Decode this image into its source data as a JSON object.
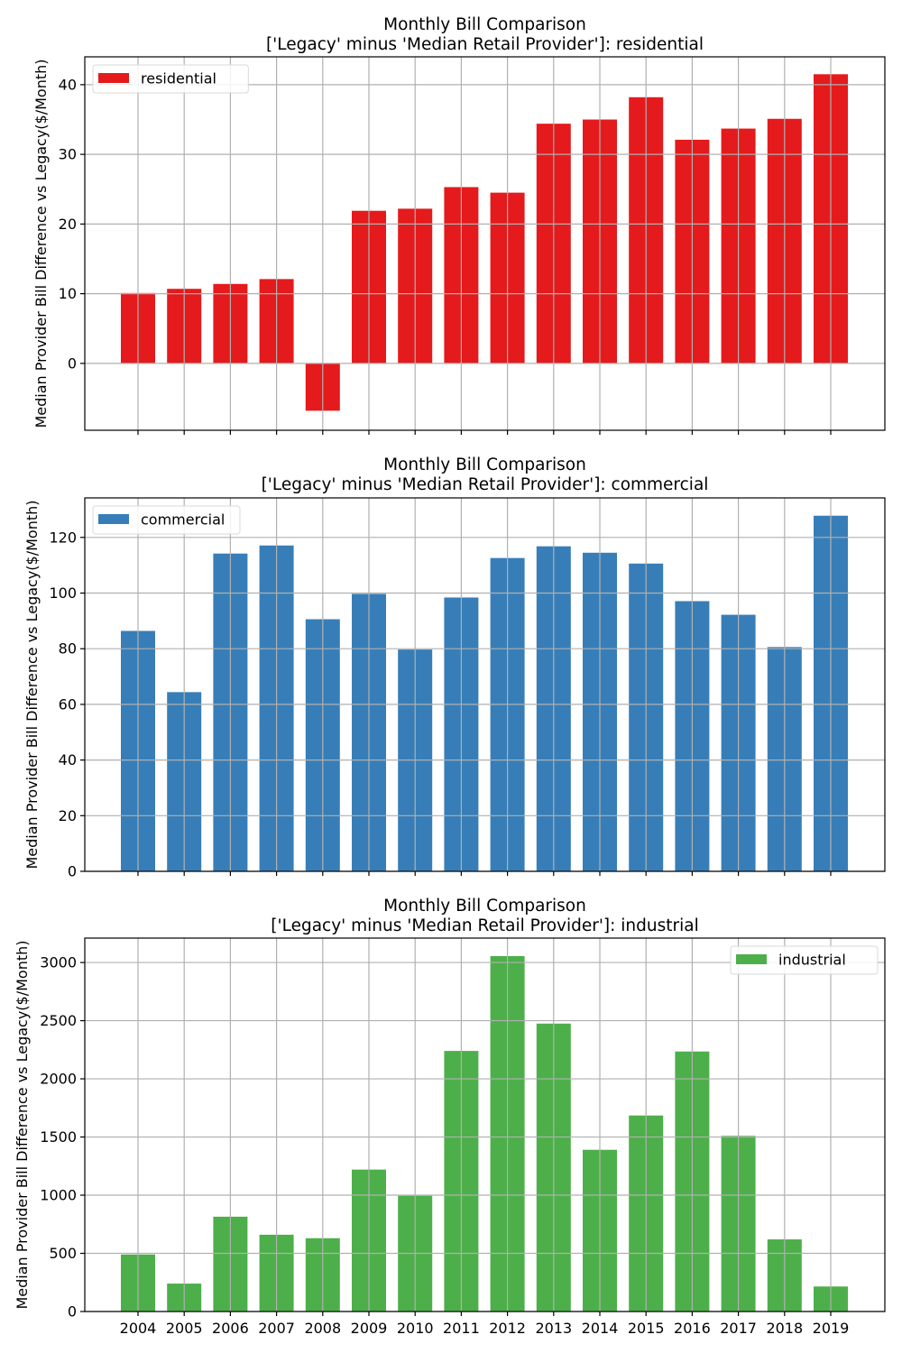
{
  "chart_data": [
    {
      "type": "bar",
      "title": "Monthly Bill Comparison\n['Legacy' minus 'Median Retail Provider']: residential",
      "title_lines": [
        "Monthly Bill Comparison",
        "['Legacy' minus 'Median Retail Provider']: residential"
      ],
      "xlabel": "",
      "ylabel": "Median Provider Bill Difference vs Legacy($/Month)",
      "categories": [
        "2004",
        "2005",
        "2006",
        "2007",
        "2008",
        "2009",
        "2010",
        "2011",
        "2012",
        "2013",
        "2014",
        "2015",
        "2016",
        "2017",
        "2018",
        "2019"
      ],
      "series": [
        {
          "name": "residential",
          "color": "#e41a1c",
          "values": [
            10.1,
            10.7,
            11.4,
            12.1,
            -6.8,
            21.9,
            22.2,
            25.3,
            24.5,
            34.4,
            35.0,
            38.2,
            32.1,
            33.7,
            35.1,
            41.5
          ]
        }
      ],
      "ylim": [
        -9.6,
        44.0
      ],
      "yticks": [
        0,
        10,
        20,
        30,
        40
      ],
      "ytick_labels": [
        "0",
        "10",
        "20",
        "30",
        "40"
      ],
      "show_xtick_labels": false,
      "grid": true,
      "legend": "upper-left"
    },
    {
      "type": "bar",
      "title": "Monthly Bill Comparison\n['Legacy' minus 'Median Retail Provider']: commercial",
      "title_lines": [
        "Monthly Bill Comparison",
        "['Legacy' minus 'Median Retail Provider']: commercial"
      ],
      "xlabel": "",
      "ylabel": "Median Provider Bill Difference vs Legacy($/Month)",
      "categories": [
        "2004",
        "2005",
        "2006",
        "2007",
        "2008",
        "2009",
        "2010",
        "2011",
        "2012",
        "2013",
        "2014",
        "2015",
        "2016",
        "2017",
        "2018",
        "2019"
      ],
      "series": [
        {
          "name": "commercial",
          "color": "#377eb8",
          "values": [
            86.4,
            64.4,
            114.2,
            117.1,
            90.6,
            99.7,
            79.7,
            98.4,
            112.6,
            116.8,
            114.5,
            110.6,
            97.1,
            92.2,
            80.6,
            127.8
          ]
        }
      ],
      "ylim": [
        0,
        134.2
      ],
      "yticks": [
        0,
        20,
        40,
        60,
        80,
        100,
        120
      ],
      "ytick_labels": [
        "0",
        "20",
        "40",
        "60",
        "80",
        "100",
        "120"
      ],
      "show_xtick_labels": false,
      "grid": true,
      "legend": "upper-left"
    },
    {
      "type": "bar",
      "title": "Monthly Bill Comparison\n['Legacy' minus 'Median Retail Provider']: industrial",
      "title_lines": [
        "Monthly Bill Comparison",
        "['Legacy' minus 'Median Retail Provider']: industrial"
      ],
      "xlabel": "",
      "ylabel": "Median Provider Bill Difference vs Legacy($/Month)",
      "categories": [
        "2004",
        "2005",
        "2006",
        "2007",
        "2008",
        "2009",
        "2010",
        "2011",
        "2012",
        "2013",
        "2014",
        "2015",
        "2016",
        "2017",
        "2018",
        "2019"
      ],
      "series": [
        {
          "name": "industrial",
          "color": "#4daf4a",
          "values": [
            490,
            240,
            815,
            660,
            630,
            1220,
            995,
            2240,
            3055,
            2475,
            1390,
            1685,
            2235,
            1510,
            620,
            215
          ]
        }
      ],
      "ylim": [
        0,
        3210
      ],
      "yticks": [
        0,
        500,
        1000,
        1500,
        2000,
        2500,
        3000
      ],
      "ytick_labels": [
        "0",
        "500",
        "1000",
        "1500",
        "2000",
        "2500",
        "3000"
      ],
      "show_xtick_labels": true,
      "grid": true,
      "legend": "upper-right"
    }
  ]
}
